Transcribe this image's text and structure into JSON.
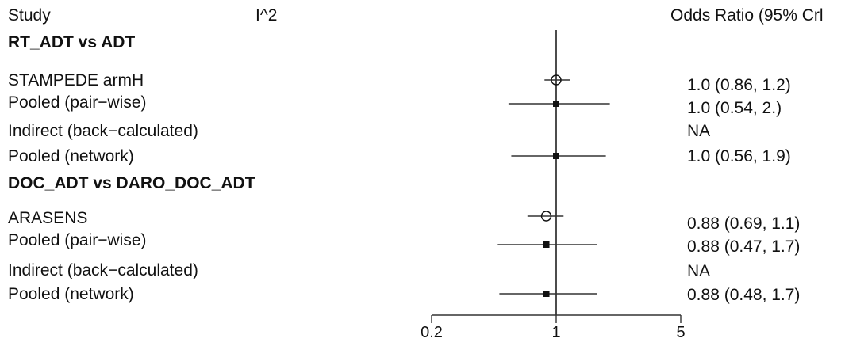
{
  "header": {
    "study_label": "Study",
    "i2_label": "I^2",
    "or_label": "Odds Ratio (95% Crl"
  },
  "chart_data": {
    "type": "forest",
    "title": "",
    "xlabel": "",
    "xscale": "log",
    "xlim": [
      0.2,
      5
    ],
    "xticks": [
      0.2,
      1,
      5
    ],
    "xtick_labels": [
      "0.2",
      "1",
      "5"
    ],
    "reference_line": 1,
    "groups": [
      {
        "name": "RT_ADT vs ADT",
        "rows": [
          {
            "label": "STAMPEDE armH",
            "kind": "study",
            "estimate": 1.0,
            "lower": 0.86,
            "upper": 1.2,
            "text": "1.0 (0.86, 1.2)"
          },
          {
            "label": "Pooled (pair−wise)",
            "kind": "pooled",
            "estimate": 1.0,
            "lower": 0.54,
            "upper": 2.0,
            "text": "1.0 (0.54,  2.)"
          },
          {
            "label": "Indirect (back−calculated)",
            "kind": "na",
            "estimate": null,
            "lower": null,
            "upper": null,
            "text": "NA"
          },
          {
            "label": "Pooled (network)",
            "kind": "pooled",
            "estimate": 1.0,
            "lower": 0.56,
            "upper": 1.9,
            "text": "1.0 (0.56, 1.9)"
          }
        ]
      },
      {
        "name": "DOC_ADT vs DARO_DOC_ADT",
        "rows": [
          {
            "label": "ARASENS",
            "kind": "study",
            "estimate": 0.88,
            "lower": 0.69,
            "upper": 1.1,
            "text": "0.88 (0.69, 1.1)"
          },
          {
            "label": "Pooled (pair−wise)",
            "kind": "pooled",
            "estimate": 0.88,
            "lower": 0.47,
            "upper": 1.7,
            "text": "0.88 (0.47, 1.7)"
          },
          {
            "label": "Indirect (back−calculated)",
            "kind": "na",
            "estimate": null,
            "lower": null,
            "upper": null,
            "text": "NA"
          },
          {
            "label": "Pooled (network)",
            "kind": "pooled",
            "estimate": 0.88,
            "lower": 0.48,
            "upper": 1.7,
            "text": "0.88 (0.48, 1.7)"
          }
        ]
      }
    ]
  }
}
